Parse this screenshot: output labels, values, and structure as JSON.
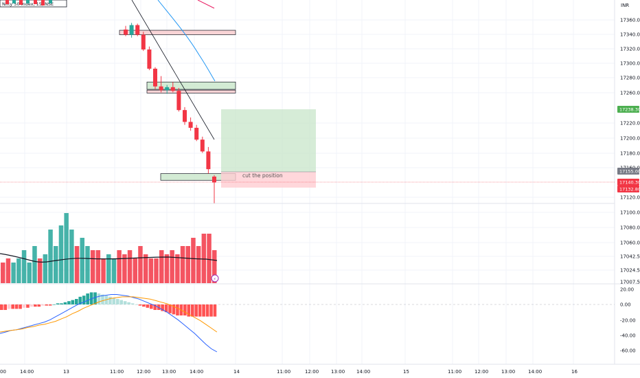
{
  "header": {
    "symbol_title": "Nifty 50 Index, 15, NSE",
    "currency": "INR"
  },
  "annotation": {
    "text": "cut the position"
  },
  "price_axis": {
    "ticks": [
      "17360.00",
      "17340.00",
      "17320.00",
      "17300.00",
      "17280.00",
      "17260.00",
      "17220.00",
      "17200.00",
      "17180.00",
      "17160.00",
      "17120.00",
      "17100.00",
      "17080.00",
      "17060.00",
      "17042.50",
      "17024.50",
      "17007.50"
    ]
  },
  "price_tags": [
    {
      "text": "17238.30",
      "bg": "#4caf50",
      "fg": "#ffffff"
    },
    {
      "text": "17155.00",
      "bg": "#787b86",
      "fg": "#ffffff"
    },
    {
      "text": "17140.30",
      "bg": "#f23645",
      "fg": "#ffffff"
    },
    {
      "text": "17132.80",
      "bg": "#f23645",
      "fg": "#ffffff"
    }
  ],
  "osc_axis": {
    "ticks": [
      "20.00",
      "0.00",
      "-20.00",
      "-40.00",
      "-60.00"
    ]
  },
  "time_axis": {
    "labels": [
      "00",
      "14:00",
      "13",
      "11:00",
      "12:00",
      "13:00",
      "14:00",
      "14",
      "11:00",
      "12:00",
      "13:00",
      "14:00",
      "15",
      "11:00",
      "12:00",
      "13:00",
      "14:00",
      "16"
    ]
  },
  "colors": {
    "up": "#26a69a",
    "down": "#f23645",
    "grid": "#f0f3fa",
    "text": "#131722"
  },
  "chart_data": {
    "type": "candlestick",
    "price_range": [
      17100,
      17370
    ],
    "candles": [
      {
        "o": 17347,
        "h": 17352,
        "l": 17338,
        "c": 17340
      },
      {
        "o": 17340,
        "h": 17356,
        "l": 17336,
        "c": 17353
      },
      {
        "o": 17353,
        "h": 17355,
        "l": 17338,
        "c": 17340
      },
      {
        "o": 17340,
        "h": 17344,
        "l": 17318,
        "c": 17320
      },
      {
        "o": 17320,
        "h": 17324,
        "l": 17292,
        "c": 17294
      },
      {
        "o": 17294,
        "h": 17296,
        "l": 17266,
        "c": 17270
      },
      {
        "o": 17270,
        "h": 17284,
        "l": 17262,
        "c": 17265
      },
      {
        "o": 17265,
        "h": 17272,
        "l": 17260,
        "c": 17269
      },
      {
        "o": 17269,
        "h": 17276,
        "l": 17262,
        "c": 17264
      },
      {
        "o": 17264,
        "h": 17268,
        "l": 17236,
        "c": 17238
      },
      {
        "o": 17238,
        "h": 17242,
        "l": 17218,
        "c": 17222
      },
      {
        "o": 17222,
        "h": 17228,
        "l": 17210,
        "c": 17214
      },
      {
        "o": 17214,
        "h": 17218,
        "l": 17196,
        "c": 17198
      },
      {
        "o": 17198,
        "h": 17202,
        "l": 17180,
        "c": 17182
      },
      {
        "o": 17182,
        "h": 17188,
        "l": 17152,
        "c": 17158
      },
      {
        "o": 17148,
        "h": 17150,
        "l": 17112,
        "c": 17140
      }
    ],
    "zones": [
      {
        "kind": "supply",
        "top": 17346,
        "bottom": 17340
      },
      {
        "kind": "demand",
        "top": 17276,
        "bottom": 17266
      },
      {
        "kind": "supply",
        "top": 17265,
        "bottom": 17261
      },
      {
        "kind": "demand",
        "top": 17152,
        "bottom": 17143
      }
    ],
    "position": {
      "entry": 17155.0,
      "target": 17238.3,
      "stop": 17132.8
    },
    "volume": {
      "bars": [
        {
          "v": 5,
          "up": false
        },
        {
          "v": 6,
          "up": false
        },
        {
          "v": 5,
          "up": true
        },
        {
          "v": 6,
          "up": true
        },
        {
          "v": 8,
          "up": true
        },
        {
          "v": 5,
          "up": true
        },
        {
          "v": 9,
          "up": true
        },
        {
          "v": 6,
          "up": false
        },
        {
          "v": 7,
          "up": true
        },
        {
          "v": 13,
          "up": true
        },
        {
          "v": 9,
          "up": true
        },
        {
          "v": 14,
          "up": true
        },
        {
          "v": 17,
          "up": true
        },
        {
          "v": 13,
          "up": true
        },
        {
          "v": 9,
          "up": false
        },
        {
          "v": 11,
          "up": true
        },
        {
          "v": 9,
          "up": true
        },
        {
          "v": 8,
          "up": false
        },
        {
          "v": 8,
          "up": false
        },
        {
          "v": 6,
          "up": false
        },
        {
          "v": 7,
          "up": true
        },
        {
          "v": 6,
          "up": true
        },
        {
          "v": 8,
          "up": false
        },
        {
          "v": 7,
          "up": false
        },
        {
          "v": 8,
          "up": false
        },
        {
          "v": 6,
          "up": false
        },
        {
          "v": 9,
          "up": false
        },
        {
          "v": 7,
          "up": false
        },
        {
          "v": 6,
          "up": false
        },
        {
          "v": 6,
          "up": false
        },
        {
          "v": 8,
          "up": false
        },
        {
          "v": 7,
          "up": false
        },
        {
          "v": 8,
          "up": false
        },
        {
          "v": 7,
          "up": false
        },
        {
          "v": 9,
          "up": false
        },
        {
          "v": 9,
          "up": false
        },
        {
          "v": 11,
          "up": false
        },
        {
          "v": 9,
          "up": false
        },
        {
          "v": 12,
          "up": false
        },
        {
          "v": 12,
          "up": false
        },
        {
          "v": 8,
          "up": false
        }
      ]
    },
    "macd_hist": [
      -5,
      -5,
      -4,
      -4,
      -4,
      -4,
      -3,
      -3,
      -2,
      -2,
      -2,
      -1,
      -1,
      -1,
      0,
      1,
      1,
      2,
      3,
      4,
      5,
      7,
      8,
      10,
      11,
      11,
      10,
      9,
      8,
      7,
      6,
      5,
      4,
      3,
      2,
      1,
      0,
      -1,
      -2,
      -3,
      -4,
      -5,
      -5,
      -6,
      -7,
      -8,
      -9,
      -10,
      -10,
      -10,
      -11,
      -11,
      -11,
      -11,
      -11,
      -11,
      -11,
      -11
    ],
    "macd_line": [
      -38,
      -36,
      -34,
      -33,
      -31,
      -29,
      -27,
      -25,
      -23,
      -20,
      -16,
      -12,
      -8,
      -4,
      0,
      3,
      6,
      9,
      11,
      12,
      13,
      13,
      12,
      11,
      9,
      7,
      4,
      1,
      -2,
      -6,
      -10,
      -15,
      -20,
      -26,
      -32,
      -38,
      -45,
      -52,
      -58,
      -62
    ],
    "signal_line": [
      -36,
      -35,
      -34,
      -33,
      -32,
      -30,
      -29,
      -27,
      -26,
      -24,
      -22,
      -19,
      -16,
      -12,
      -9,
      -5,
      -2,
      1,
      4,
      6,
      8,
      9,
      10,
      10,
      10,
      9,
      8,
      7,
      5,
      3,
      1,
      -2,
      -5,
      -9,
      -13,
      -17,
      -21,
      -26,
      -31,
      -36
    ]
  }
}
